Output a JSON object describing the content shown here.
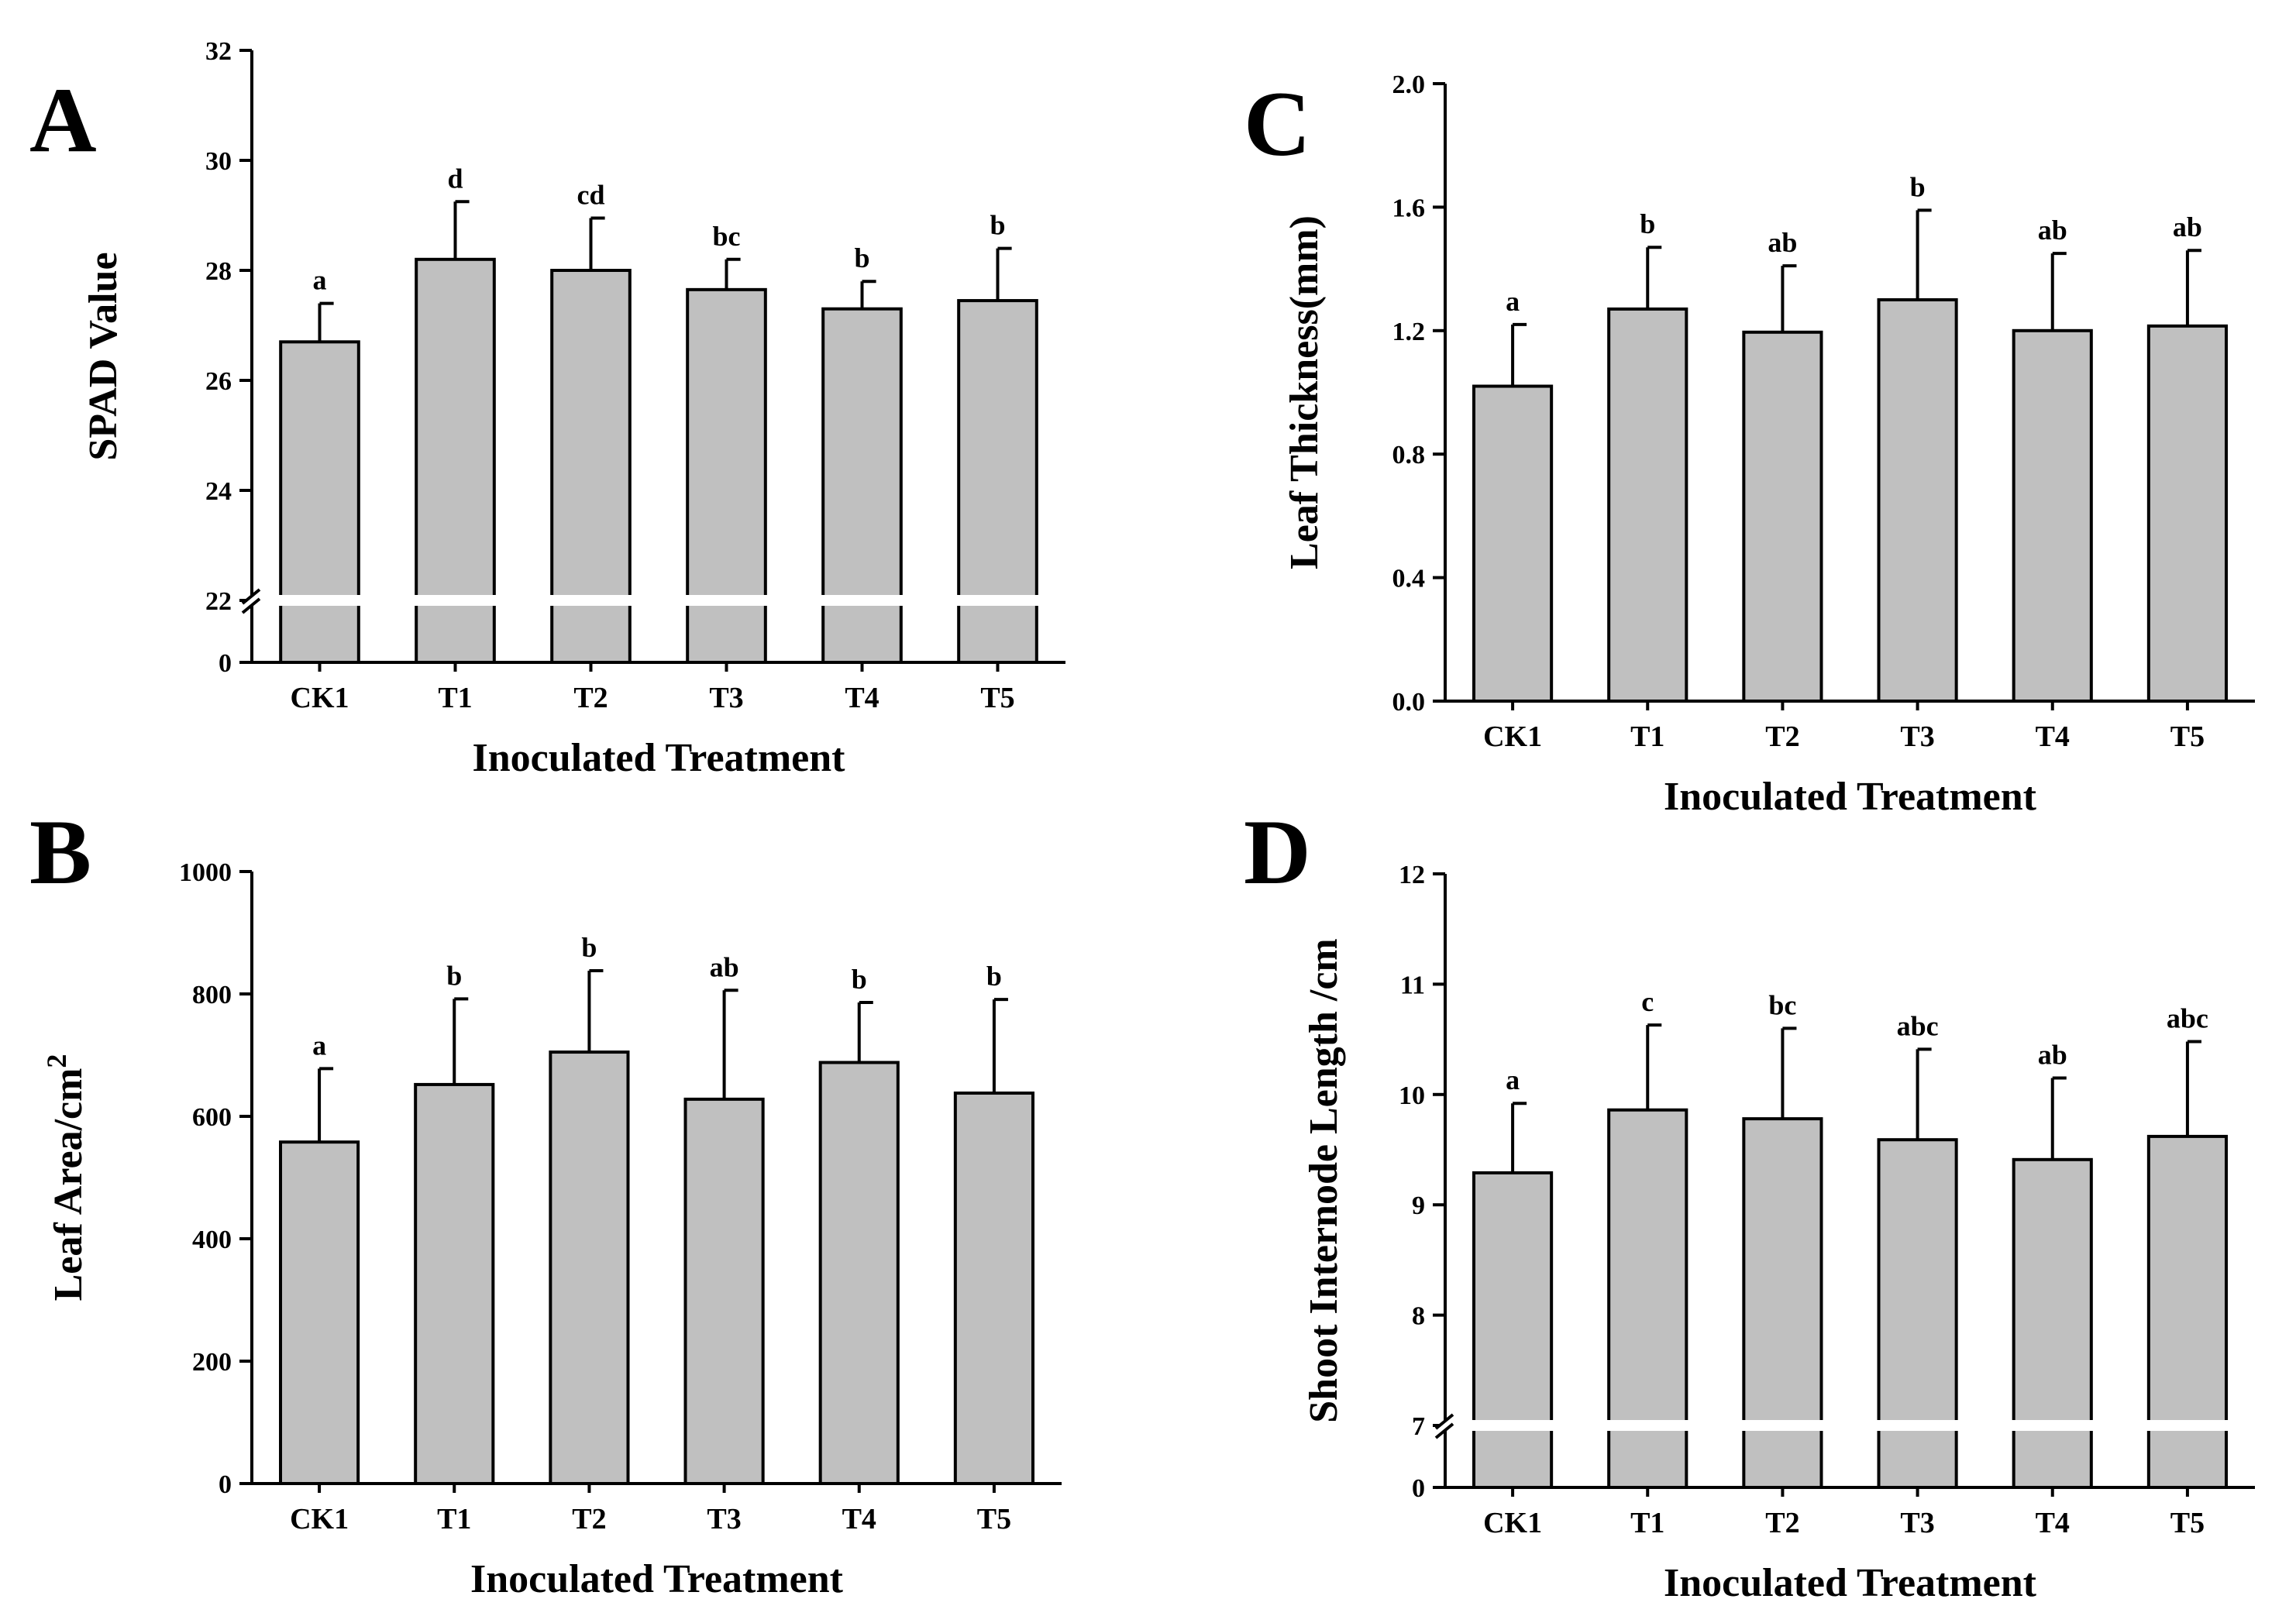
{
  "chart_data": [
    {
      "panel": "A",
      "type": "bar",
      "categories": [
        "CK1",
        "T1",
        "T2",
        "T3",
        "T4",
        "T5"
      ],
      "values": [
        26.7,
        28.2,
        28.0,
        27.65,
        27.3,
        27.45
      ],
      "errors": [
        0.7,
        1.05,
        0.95,
        0.55,
        0.5,
        0.95
      ],
      "significance": [
        "a",
        "d",
        "cd",
        "bc",
        "b",
        "b"
      ],
      "xlabel": "Inoculated Treatment",
      "ylabel": "SPAD Value",
      "ylim": [
        22,
        32
      ],
      "yticks": [
        "0",
        "22",
        "24",
        "26",
        "28",
        "30",
        "32"
      ],
      "axis_break": true,
      "bar_color": "#c0c0c0"
    },
    {
      "panel": "B",
      "type": "bar",
      "categories": [
        "CK1",
        "T1",
        "T2",
        "T3",
        "T4",
        "T5"
      ],
      "values": [
        558,
        652,
        705,
        628,
        688,
        638
      ],
      "errors": [
        120,
        140,
        133,
        178,
        98,
        153
      ],
      "significance": [
        "a",
        "b",
        "b",
        "ab",
        "b",
        "b"
      ],
      "xlabel": "Inoculated Treatment",
      "ylabel": "Leaf Area/cm",
      "ylabel_sup": "2",
      "ylim": [
        0,
        1000
      ],
      "yticks": [
        "0",
        "200",
        "400",
        "600",
        "800",
        "1000"
      ],
      "axis_break": false,
      "bar_color": "#c0c0c0"
    },
    {
      "panel": "C",
      "type": "bar",
      "categories": [
        "CK1",
        "T1",
        "T2",
        "T3",
        "T4",
        "T5"
      ],
      "values": [
        1.02,
        1.27,
        1.195,
        1.3,
        1.2,
        1.215
      ],
      "errors": [
        0.2,
        0.2,
        0.215,
        0.29,
        0.25,
        0.245
      ],
      "significance": [
        "a",
        "b",
        "ab",
        "b",
        "ab",
        "ab"
      ],
      "xlabel": "Inoculated Treatment",
      "ylabel": "Leaf Thickness(mm)",
      "ylim": [
        0,
        2.0
      ],
      "yticks": [
        "0.0",
        "0.4",
        "0.8",
        "1.2",
        "1.6",
        "2.0"
      ],
      "axis_break": false,
      "bar_color": "#c0c0c0"
    },
    {
      "panel": "D",
      "type": "bar",
      "categories": [
        "CK1",
        "T1",
        "T2",
        "T3",
        "T4",
        "T5"
      ],
      "values": [
        9.29,
        9.86,
        9.78,
        9.59,
        9.41,
        9.62
      ],
      "errors": [
        0.63,
        0.77,
        0.82,
        0.82,
        0.74,
        0.86
      ],
      "significance": [
        "a",
        "c",
        "bc",
        "abc",
        "ab",
        "abc"
      ],
      "xlabel": "Inoculated Treatment",
      "ylabel": "Shoot Internode Length /cm",
      "ylim": [
        7,
        12
      ],
      "yticks": [
        "0",
        "7",
        "8",
        "9",
        "10",
        "11",
        "12"
      ],
      "axis_break": true,
      "bar_color": "#c0c0c0"
    }
  ]
}
